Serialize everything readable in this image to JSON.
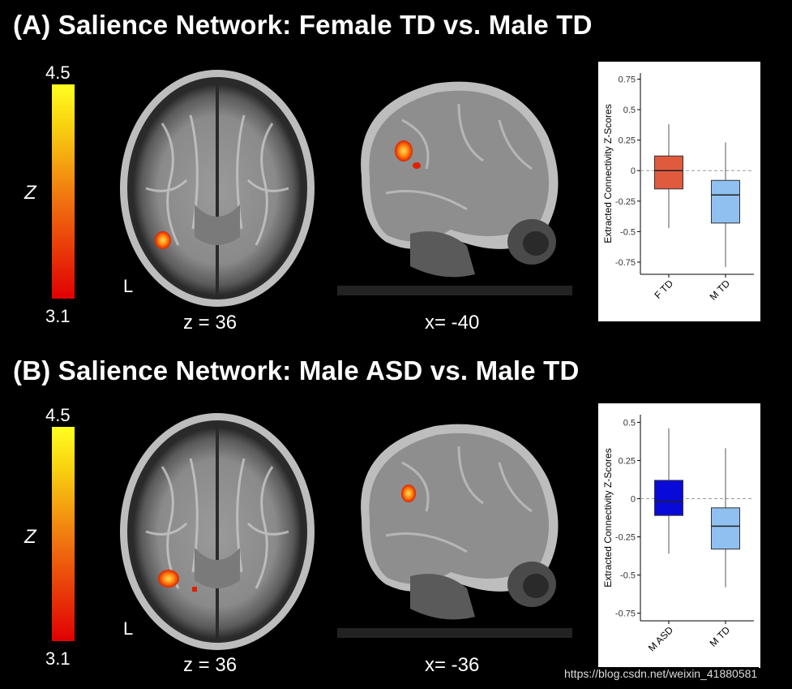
{
  "panels": [
    {
      "title": "(A) Salience Network: Female TD vs. Male TD",
      "colorbar": {
        "max_label": "4.5",
        "min_label": "3.1",
        "var_label": "Z"
      },
      "axial": {
        "label": "z = 36",
        "side_marker": "L"
      },
      "sagittal": {
        "label": "x= -40"
      },
      "chart": {
        "type": "box",
        "ylabel": "Extracted Connectivity Z-Scores",
        "ylim": [
          -0.85,
          0.8
        ],
        "yticks": [
          "0.75",
          "0.5",
          "0.25",
          "0",
          "-0.25",
          "-0.5",
          "-0.75"
        ],
        "reference_line": 0,
        "groups": [
          {
            "name": "F TD",
            "color": "#e05a3e",
            "whisker_high": 0.38,
            "q3": 0.12,
            "median": 0.0,
            "q1": -0.15,
            "whisker_low": -0.47
          },
          {
            "name": "M TD",
            "color": "#8fc0f0",
            "whisker_high": 0.23,
            "q3": -0.08,
            "median": -0.2,
            "q1": -0.43,
            "whisker_low": -0.79
          }
        ]
      }
    },
    {
      "title": "(B) Salience Network: Male ASD vs. Male TD",
      "colorbar": {
        "max_label": "4.5",
        "min_label": "3.1",
        "var_label": "Z"
      },
      "axial": {
        "label": "z = 36",
        "side_marker": "L"
      },
      "sagittal": {
        "label": "x= -36"
      },
      "chart": {
        "type": "box",
        "ylabel": "Extracted Connectivity Z-Scores",
        "ylim": [
          -0.8,
          0.55
        ],
        "yticks": [
          "0.5",
          "0.25",
          "0",
          "-0.25",
          "-0.5",
          "-0.75"
        ],
        "reference_line": 0,
        "groups": [
          {
            "name": "M ASD",
            "color": "#0a0ad8",
            "whisker_high": 0.46,
            "q3": 0.12,
            "median": -0.02,
            "q1": -0.11,
            "whisker_low": -0.36
          },
          {
            "name": "M TD",
            "color": "#8fc0f0",
            "whisker_high": 0.33,
            "q3": -0.06,
            "median": -0.18,
            "q1": -0.33,
            "whisker_low": -0.58
          }
        ]
      }
    }
  ],
  "chart_data": [
    {
      "type": "box",
      "title": "Salience Network: Female TD vs. Male TD",
      "ylabel": "Extracted Connectivity Z-Scores",
      "categories": [
        "F TD",
        "M TD"
      ],
      "ylim": [
        -0.85,
        0.8
      ]
    },
    {
      "type": "box",
      "title": "Salience Network: Male ASD vs. Male TD",
      "ylabel": "Extracted Connectivity Z-Scores",
      "categories": [
        "M ASD",
        "M TD"
      ],
      "ylim": [
        -0.8,
        0.55
      ]
    }
  ],
  "watermark": "https://blog.csdn.net/weixin_41880581"
}
